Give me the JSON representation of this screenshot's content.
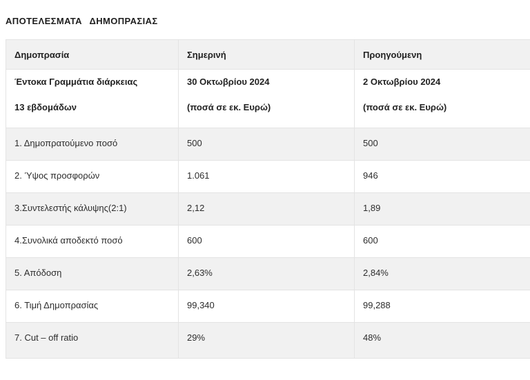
{
  "page": {
    "title": "ΑΠΟΤΕΛΕΣΜΑΤΑ ΔΗΜΟΠΡΑΣΙΑΣ"
  },
  "table": {
    "columns": [
      "Δημοπρασία",
      "Σημερινή",
      "Προηγούμενη"
    ],
    "subheader": {
      "auction": [
        "Έντοκα Γραμμάτια διάρκειας",
        "13 εβδομάδων"
      ],
      "current": [
        "30 Οκτωβρίου 2024",
        "(ποσά σε εκ. Ευρώ)"
      ],
      "previous": [
        "2 Οκτωβρίου 2024",
        "(ποσά σε εκ. Ευρώ)"
      ]
    },
    "rows": [
      {
        "label": "1. Δημοπρατούμενο ποσό",
        "current": "500",
        "previous": "500"
      },
      {
        "label": "2. Ύψος προσφορών",
        "current": "1.061",
        "previous": "946"
      },
      {
        "label": "3.Συντελεστής κάλυψης(2:1)",
        "current": "2,12",
        "previous": "1,89"
      },
      {
        "label": "4.Συνολικά αποδεκτό ποσό",
        "current": "600",
        "previous": "600"
      },
      {
        "label": "5. Απόδοση",
        "current": "2,63%",
        "previous": "2,84%"
      },
      {
        "label": "6. Τιμή Δημοπρασίας",
        "current": "99,340",
        "previous": "99,288"
      },
      {
        "label": "7. Cut – off ratio",
        "current": "29%",
        "previous": "48%"
      }
    ],
    "colors": {
      "row_shade": "#f1f1f1",
      "border": "#e3e3e3",
      "text": "#2d2d2d"
    }
  }
}
